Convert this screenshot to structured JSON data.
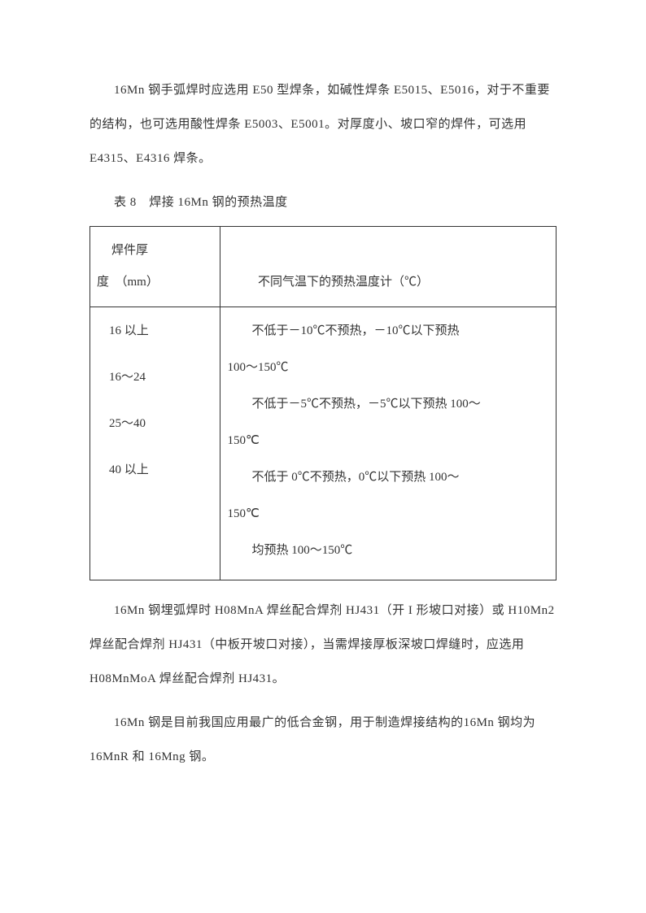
{
  "text_color": "#333333",
  "background_color": "#ffffff",
  "border_color": "#333333",
  "font_family": "SimSun",
  "base_fontsize": 15,
  "line_height": 2.8,
  "para1": "16Mn 钢手弧焊时应选用 E50 型焊条，如碱性焊条 E5015、E5016，对于不重要的结构，也可选用酸性焊条 E5003、E5001。对厚度小、坡口窄的焊件，可选用 E4315、E4316 焊条。",
  "table_caption": "表 8　焊接 16Mn 钢的预热温度",
  "table": {
    "type": "table",
    "columns": 2,
    "col_widths_pct": [
      28,
      72
    ],
    "header": {
      "left_line1": "焊件厚",
      "left_line2": "度　（mm）",
      "right": "不同气温下的预热温度计（℃）"
    },
    "body": {
      "left_items": [
        "16 以上",
        "16～24",
        "25～40",
        "40 以上"
      ],
      "right_items": [
        {
          "l1": "不低于－10℃不预热，－10℃以下预热",
          "l2": "100～150℃"
        },
        {
          "l1": "不低于－5℃不预热，－5℃以下预热 100～",
          "l2": "150℃"
        },
        {
          "l1": "不低于 0℃不预热，0℃以下预热 100～",
          "l2": "150℃"
        },
        {
          "l1": "均预热 100～150℃",
          "l2": ""
        }
      ]
    }
  },
  "para2": "16Mn 钢埋弧焊时 H08MnA 焊丝配合焊剂 HJ431（开 I 形坡口对接）或 H10Mn2 焊丝配合焊剂 HJ431（中板开坡口对接），当需焊接厚板深坡口焊缝时，应选用 H08MnMoA 焊丝配合焊剂 HJ431。",
  "para3": "16Mn 钢是目前我国应用最广的低合金钢，用于制造焊接结构的16Mn 钢均为 16MnR 和 16Mng 钢。"
}
